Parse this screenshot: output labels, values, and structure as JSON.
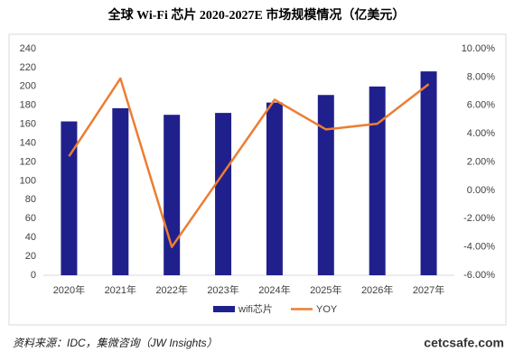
{
  "chart_data": {
    "type": "bar",
    "title": "全球 Wi-Fi 芯片 2020-2027E 市场规模情况（亿美元）",
    "categories": [
      "2020年",
      "2021年",
      "2022年",
      "2023年",
      "2024年",
      "2025年",
      "2026年",
      "2027年"
    ],
    "series": [
      {
        "name": "wifi芯片",
        "type": "bar",
        "color": "#20208c",
        "values": [
          163,
          177,
          170,
          172,
          183,
          191,
          200,
          216
        ]
      },
      {
        "name": "YOY",
        "type": "line",
        "axis": "y2",
        "color": "#ed7d31",
        "values": [
          2.4,
          7.9,
          -4.0,
          1.2,
          6.4,
          4.3,
          4.7,
          7.5
        ]
      }
    ],
    "ylim": [
      0,
      240
    ],
    "yticks": [
      0,
      20,
      40,
      60,
      80,
      100,
      120,
      140,
      160,
      180,
      200,
      220,
      240
    ],
    "y2lim": [
      -6,
      10
    ],
    "y2ticks": [
      {
        "value": -6,
        "label": "-6.00%"
      },
      {
        "value": -4,
        "label": "-4.00%"
      },
      {
        "value": -2,
        "label": "-2.00%"
      },
      {
        "value": 0,
        "label": "0.00%"
      },
      {
        "value": 2,
        "label": "2.00%"
      },
      {
        "value": 4,
        "label": "4.00%"
      },
      {
        "value": 6,
        "label": "6.00%"
      },
      {
        "value": 8,
        "label": "8.00%"
      },
      {
        "value": 10,
        "label": "10.00%"
      }
    ],
    "grid": false,
    "legend": "bottom"
  },
  "source": "资料来源：IDC，集微咨询（JW Insights）",
  "watermark": "cetcsafe.com"
}
